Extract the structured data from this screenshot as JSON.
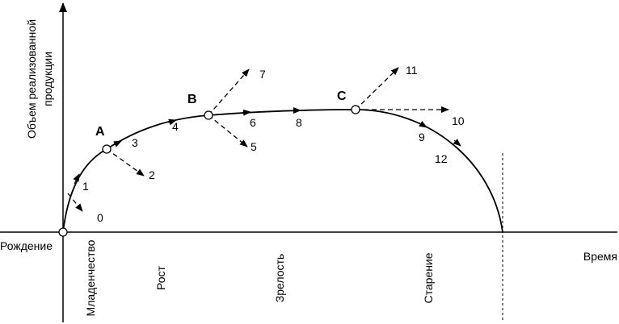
{
  "axes": {
    "y_label": [
      "Объем реализованной",
      "продукции"
    ],
    "x_label": "Время"
  },
  "origin_label": "Рождение",
  "stages": [
    "Младенчество",
    "Рост",
    "Зрелость",
    "Старение"
  ],
  "points": [
    "A",
    "B",
    "C"
  ],
  "arrow_labels": [
    "0",
    "1",
    "2",
    "3",
    "4",
    "5",
    "6",
    "7",
    "8",
    "9",
    "10",
    "11",
    "12"
  ]
}
